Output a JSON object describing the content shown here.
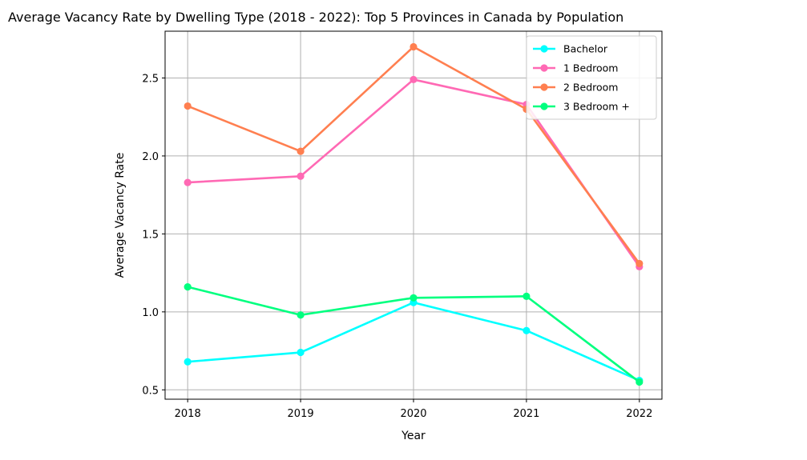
{
  "chart_data": {
    "type": "line",
    "title": "Average Vacancy Rate by Dwelling Type (2018 - 2022): Top 5 Provinces in Canada by Population",
    "xlabel": "Year",
    "ylabel": "Average Vacancy Rate",
    "x": [
      2018,
      2019,
      2020,
      2021,
      2022
    ],
    "x_tick_labels": [
      "2018",
      "2019",
      "2020",
      "2021",
      "2022"
    ],
    "y_ticks": [
      0.5,
      1.0,
      1.5,
      2.0,
      2.5
    ],
    "y_tick_labels": [
      "0.5",
      "1.0",
      "1.5",
      "2.0",
      "2.5"
    ],
    "xlim": [
      2017.8,
      2022.2
    ],
    "ylim": [
      0.44,
      2.8
    ],
    "grid": true,
    "legend_position": "top-right",
    "series": [
      {
        "name": "Bachelor",
        "color": "#00ffff",
        "values": [
          0.68,
          0.74,
          1.06,
          0.88,
          0.56
        ]
      },
      {
        "name": "1 Bedroom",
        "color": "#ff69b4",
        "values": [
          1.83,
          1.87,
          2.49,
          2.33,
          1.29
        ]
      },
      {
        "name": "2 Bedroom",
        "color": "#ff7f50",
        "values": [
          2.32,
          2.03,
          2.7,
          2.3,
          1.31
        ]
      },
      {
        "name": "3 Bedroom +",
        "color": "#00ff7f",
        "values": [
          1.16,
          0.98,
          1.09,
          1.1,
          0.55
        ]
      }
    ]
  }
}
